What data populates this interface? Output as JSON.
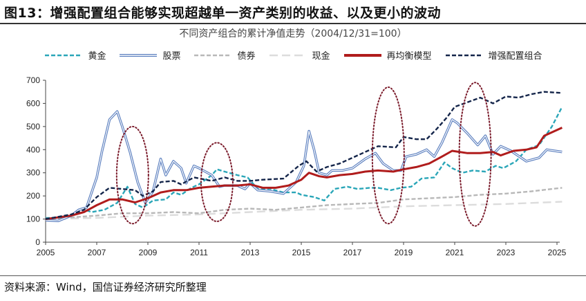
{
  "figure_title": "图13：增强配置组合能够实现超越单一资产类别的收益、以及更小的波动",
  "source_note": "资料来源：Wind，国信证券经济研究所整理",
  "chart_data": {
    "type": "line",
    "title": "不同资产组合的累计净值走势（2004/12/31=100）",
    "xlabel": "",
    "ylabel": "",
    "xlim": [
      2005,
      2025.3
    ],
    "ylim": [
      0,
      700
    ],
    "x_ticks": [
      "2005",
      "2007",
      "2009",
      "2011",
      "2013",
      "2015",
      "2017",
      "2019",
      "2021",
      "2023",
      "2025"
    ],
    "y_ticks": [
      "0",
      "100",
      "200",
      "300",
      "400",
      "500",
      "600",
      "700"
    ],
    "grid": false,
    "legend_position": "top",
    "series": [
      {
        "name": "黄金",
        "color": "#2aa6b8",
        "style": "dashed",
        "points": [
          [
            2005,
            105
          ],
          [
            2005.5,
            105
          ],
          [
            2006,
            115
          ],
          [
            2006.4,
            145
          ],
          [
            2006.8,
            130
          ],
          [
            2007.3,
            140
          ],
          [
            2007.8,
            170
          ],
          [
            2008.2,
            240
          ],
          [
            2008.5,
            165
          ],
          [
            2008.8,
            150
          ],
          [
            2009.2,
            180
          ],
          [
            2009.7,
            185
          ],
          [
            2010,
            215
          ],
          [
            2010.3,
            205
          ],
          [
            2010.7,
            235
          ],
          [
            2011,
            250
          ],
          [
            2011.5,
            290
          ],
          [
            2011.7,
            315
          ],
          [
            2012,
            305
          ],
          [
            2012.5,
            290
          ],
          [
            2012.9,
            280
          ],
          [
            2013.3,
            230
          ],
          [
            2013.8,
            230
          ],
          [
            2014.3,
            215
          ],
          [
            2014.8,
            215
          ],
          [
            2015,
            205
          ],
          [
            2015.5,
            195
          ],
          [
            2015.9,
            180
          ],
          [
            2016.3,
            230
          ],
          [
            2016.8,
            240
          ],
          [
            2017.2,
            230
          ],
          [
            2017.7,
            235
          ],
          [
            2018,
            235
          ],
          [
            2018.5,
            225
          ],
          [
            2018.9,
            235
          ],
          [
            2019.3,
            240
          ],
          [
            2019.7,
            275
          ],
          [
            2020.2,
            280
          ],
          [
            2020.6,
            345
          ],
          [
            2020.9,
            320
          ],
          [
            2021.3,
            300
          ],
          [
            2021.7,
            310
          ],
          [
            2022.2,
            305
          ],
          [
            2022.6,
            330
          ],
          [
            2022.9,
            320
          ],
          [
            2023.4,
            350
          ],
          [
            2023.8,
            400
          ],
          [
            2024.3,
            420
          ],
          [
            2024.8,
            500
          ],
          [
            2025.2,
            585
          ]
        ]
      },
      {
        "name": "股票",
        "color": "#5b7fbf",
        "style": "double",
        "points": [
          [
            2005,
            95
          ],
          [
            2005.5,
            92
          ],
          [
            2006,
            115
          ],
          [
            2006.3,
            140
          ],
          [
            2006.6,
            150
          ],
          [
            2007,
            280
          ],
          [
            2007.2,
            390
          ],
          [
            2007.5,
            530
          ],
          [
            2007.8,
            565
          ],
          [
            2008,
            500
          ],
          [
            2008.3,
            390
          ],
          [
            2008.6,
            260
          ],
          [
            2008.9,
            170
          ],
          [
            2009.2,
            220
          ],
          [
            2009.5,
            360
          ],
          [
            2009.7,
            290
          ],
          [
            2010,
            350
          ],
          [
            2010.3,
            320
          ],
          [
            2010.5,
            255
          ],
          [
            2010.8,
            330
          ],
          [
            2011,
            320
          ],
          [
            2011.5,
            290
          ],
          [
            2011.8,
            240
          ],
          [
            2012,
            245
          ],
          [
            2012.5,
            245
          ],
          [
            2012.8,
            230
          ],
          [
            2013,
            255
          ],
          [
            2013.3,
            225
          ],
          [
            2013.8,
            220
          ],
          [
            2014.3,
            210
          ],
          [
            2014.8,
            260
          ],
          [
            2015.1,
            330
          ],
          [
            2015.3,
            480
          ],
          [
            2015.5,
            400
          ],
          [
            2015.7,
            300
          ],
          [
            2016,
            290
          ],
          [
            2016.2,
            310
          ],
          [
            2016.6,
            310
          ],
          [
            2017,
            320
          ],
          [
            2017.5,
            360
          ],
          [
            2017.9,
            385
          ],
          [
            2018.2,
            340
          ],
          [
            2018.6,
            310
          ],
          [
            2018.9,
            310
          ],
          [
            2019.1,
            370
          ],
          [
            2019.5,
            380
          ],
          [
            2019.9,
            400
          ],
          [
            2020.2,
            370
          ],
          [
            2020.5,
            430
          ],
          [
            2020.9,
            530
          ],
          [
            2021.1,
            515
          ],
          [
            2021.5,
            470
          ],
          [
            2021.9,
            420
          ],
          [
            2022.2,
            460
          ],
          [
            2022.5,
            380
          ],
          [
            2022.8,
            415
          ],
          [
            2023.2,
            395
          ],
          [
            2023.8,
            350
          ],
          [
            2024.3,
            365
          ],
          [
            2024.6,
            400
          ],
          [
            2025.2,
            390
          ]
        ]
      },
      {
        "name": "债券",
        "color": "#b8b8b8",
        "style": "dashed",
        "points": [
          [
            2005,
            100
          ],
          [
            2007,
            115
          ],
          [
            2008,
            125
          ],
          [
            2009,
            125
          ],
          [
            2010,
            130
          ],
          [
            2011,
            125
          ],
          [
            2012,
            140
          ],
          [
            2013,
            145
          ],
          [
            2014,
            140
          ],
          [
            2015,
            150
          ],
          [
            2016,
            160
          ],
          [
            2017,
            165
          ],
          [
            2018,
            170
          ],
          [
            2019,
            185
          ],
          [
            2020,
            190
          ],
          [
            2021,
            195
          ],
          [
            2022,
            205
          ],
          [
            2023,
            210
          ],
          [
            2024,
            220
          ],
          [
            2025.2,
            235
          ]
        ]
      },
      {
        "name": "现金",
        "color": "#dcdcdc",
        "style": "longdash",
        "points": [
          [
            2005,
            100
          ],
          [
            2007,
            105
          ],
          [
            2009,
            115
          ],
          [
            2011,
            120
          ],
          [
            2013,
            130
          ],
          [
            2015,
            140
          ],
          [
            2017,
            145
          ],
          [
            2019,
            155
          ],
          [
            2021,
            160
          ],
          [
            2023,
            165
          ],
          [
            2025.2,
            175
          ]
        ]
      },
      {
        "name": "再均衡模型",
        "color": "#b01c1c",
        "style": "solid",
        "points": [
          [
            2005,
            100
          ],
          [
            2006,
            115
          ],
          [
            2006.5,
            130
          ],
          [
            2007,
            160
          ],
          [
            2007.5,
            185
          ],
          [
            2008,
            185
          ],
          [
            2008.5,
            172
          ],
          [
            2009,
            190
          ],
          [
            2009.5,
            215
          ],
          [
            2010,
            225
          ],
          [
            2010.5,
            225
          ],
          [
            2011,
            235
          ],
          [
            2011.5,
            240
          ],
          [
            2012,
            245
          ],
          [
            2012.5,
            245
          ],
          [
            2013,
            250
          ],
          [
            2013.5,
            235
          ],
          [
            2014,
            235
          ],
          [
            2014.5,
            245
          ],
          [
            2015,
            270
          ],
          [
            2015.3,
            300
          ],
          [
            2015.7,
            285
          ],
          [
            2016,
            280
          ],
          [
            2016.5,
            290
          ],
          [
            2017,
            295
          ],
          [
            2017.5,
            305
          ],
          [
            2018,
            310
          ],
          [
            2018.6,
            305
          ],
          [
            2019,
            315
          ],
          [
            2019.5,
            325
          ],
          [
            2020,
            340
          ],
          [
            2020.5,
            370
          ],
          [
            2020.9,
            395
          ],
          [
            2021.5,
            385
          ],
          [
            2022,
            385
          ],
          [
            2022.5,
            390
          ],
          [
            2022.8,
            375
          ],
          [
            2023.3,
            395
          ],
          [
            2023.8,
            400
          ],
          [
            2024.2,
            410
          ],
          [
            2024.5,
            460
          ],
          [
            2025.2,
            495
          ]
        ]
      },
      {
        "name": "增强配置组合",
        "color": "#14254a",
        "style": "dashed",
        "points": [
          [
            2005,
            100
          ],
          [
            2006,
            120
          ],
          [
            2006.5,
            140
          ],
          [
            2007,
            195
          ],
          [
            2007.5,
            235
          ],
          [
            2008,
            230
          ],
          [
            2008.5,
            225
          ],
          [
            2008.8,
            200
          ],
          [
            2009.2,
            220
          ],
          [
            2009.5,
            260
          ],
          [
            2010,
            265
          ],
          [
            2010.3,
            250
          ],
          [
            2010.8,
            280
          ],
          [
            2011.5,
            265
          ],
          [
            2012,
            280
          ],
          [
            2012.5,
            265
          ],
          [
            2013,
            265
          ],
          [
            2013.5,
            270
          ],
          [
            2014.3,
            275
          ],
          [
            2014.9,
            330
          ],
          [
            2015.2,
            350
          ],
          [
            2015.6,
            305
          ],
          [
            2016,
            325
          ],
          [
            2016.5,
            340
          ],
          [
            2017,
            365
          ],
          [
            2017.5,
            390
          ],
          [
            2018,
            415
          ],
          [
            2018.7,
            410
          ],
          [
            2019,
            455
          ],
          [
            2019.5,
            445
          ],
          [
            2019.9,
            445
          ],
          [
            2020.3,
            490
          ],
          [
            2020.7,
            540
          ],
          [
            2021,
            585
          ],
          [
            2021.5,
            605
          ],
          [
            2022,
            625
          ],
          [
            2022.5,
            600
          ],
          [
            2023,
            630
          ],
          [
            2023.5,
            625
          ],
          [
            2024,
            640
          ],
          [
            2024.5,
            650
          ],
          [
            2025.2,
            645
          ]
        ]
      }
    ],
    "annotations": [
      {
        "shape": "ellipse",
        "color": "#7a1a2a",
        "x_center": 2008.4,
        "y_range": [
          80,
          500
        ]
      },
      {
        "shape": "ellipse",
        "color": "#7a1a2a",
        "x_center": 2011.7,
        "y_range": [
          90,
          430
        ]
      },
      {
        "shape": "ellipse",
        "color": "#7a1a2a",
        "x_center": 2018.4,
        "y_range": [
          80,
          670
        ]
      },
      {
        "shape": "ellipse",
        "color": "#7a1a2a",
        "x_center": 2021.8,
        "y_range": [
          70,
          690
        ]
      }
    ]
  }
}
